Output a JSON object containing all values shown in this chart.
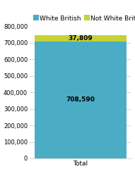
{
  "categories": [
    "Total"
  ],
  "white_british": [
    708590
  ],
  "not_white_british": [
    37809
  ],
  "white_british_label": "708,590",
  "not_white_british_label": "37,809",
  "legend_white": "White British",
  "legend_not_white": "Not White British",
  "color_white": "#4bacc6",
  "color_not_white": "#c4d235",
  "ylim": [
    0,
    800000
  ],
  "yticks": [
    0,
    100000,
    200000,
    300000,
    400000,
    500000,
    600000,
    700000,
    800000
  ],
  "background_color": "#ffffff",
  "plot_bg_color": "#ffffff",
  "grid_color": "#d9d9d9",
  "label_fontsize": 6.5,
  "legend_fontsize": 6.5,
  "tick_fontsize": 6.0,
  "bar_width": 0.55
}
